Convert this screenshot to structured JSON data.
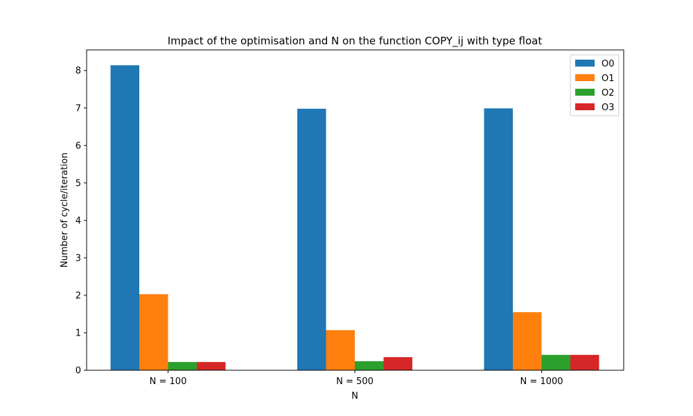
{
  "chart_data": {
    "type": "bar",
    "title": "Impact of the optimisation and N on the function COPY_ij with type float",
    "xlabel": "N",
    "ylabel": "Number of cycle/iteration",
    "categories": [
      "N = 100",
      "N = 500",
      "N = 1000"
    ],
    "series": [
      {
        "name": "O0",
        "color": "#1f77b4",
        "values": [
          8.14,
          6.98,
          6.99
        ]
      },
      {
        "name": "O1",
        "color": "#ff7f0e",
        "values": [
          2.03,
          1.07,
          1.55
        ]
      },
      {
        "name": "O2",
        "color": "#2ca02c",
        "values": [
          0.22,
          0.24,
          0.41
        ]
      },
      {
        "name": "O3",
        "color": "#d62728",
        "values": [
          0.22,
          0.35,
          0.41
        ]
      }
    ],
    "ylim": [
      0,
      8.55
    ],
    "yticks": [
      0,
      1,
      2,
      3,
      4,
      5,
      6,
      7,
      8
    ],
    "grid": false,
    "legend_position": "top-right"
  }
}
